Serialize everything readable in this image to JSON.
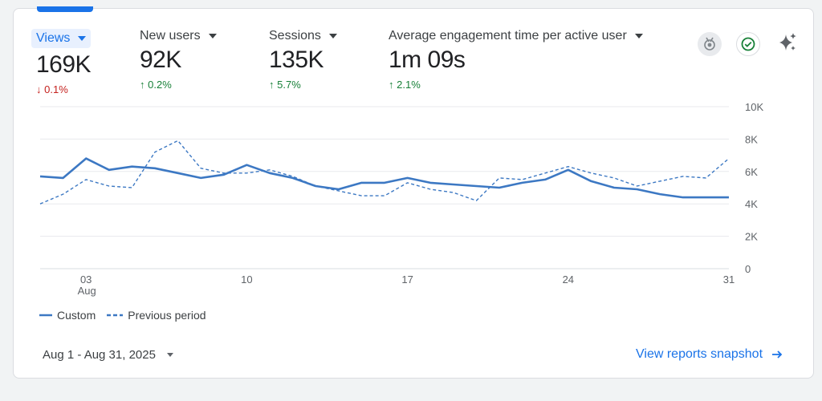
{
  "metrics": [
    {
      "label": "Views",
      "value": "169K",
      "change": "0.1%",
      "direction": "down",
      "active": true
    },
    {
      "label": "New users",
      "value": "92K",
      "change": "0.2%",
      "direction": "up",
      "active": false
    },
    {
      "label": "Sessions",
      "value": "135K",
      "change": "5.7%",
      "direction": "up",
      "active": false
    },
    {
      "label": "Average engagement time per active user",
      "value": "1m 09s",
      "change": "2.1%",
      "direction": "up",
      "active": false
    }
  ],
  "icons": [
    "insights-badge-icon",
    "check-circle-icon",
    "sparkle-icon"
  ],
  "chart_data": {
    "type": "line",
    "x": [
      1,
      2,
      3,
      4,
      5,
      6,
      7,
      8,
      9,
      10,
      11,
      12,
      13,
      14,
      15,
      16,
      17,
      18,
      19,
      20,
      21,
      22,
      23,
      24,
      25,
      26,
      27,
      28,
      29,
      30,
      31
    ],
    "x_tick_labels": [
      "03",
      "10",
      "17",
      "24",
      "31"
    ],
    "x_tick_values": [
      3,
      10,
      17,
      24,
      31
    ],
    "x_sublabel": "Aug",
    "y_tick_labels": [
      "10K",
      "8K",
      "6K",
      "4K",
      "2K",
      "0"
    ],
    "ylim": [
      0,
      10000
    ],
    "series": [
      {
        "name": "Custom",
        "style": "solid",
        "values": [
          5700,
          5600,
          6800,
          6100,
          6300,
          6200,
          5900,
          5600,
          5800,
          6400,
          5900,
          5600,
          5100,
          4900,
          5300,
          5300,
          5600,
          5300,
          5200,
          5100,
          5000,
          5300,
          5500,
          6100,
          5400,
          5000,
          4900,
          4600,
          4400,
          4400,
          4400
        ]
      },
      {
        "name": "Previous period",
        "style": "dashed",
        "values": [
          4000,
          4600,
          5500,
          5100,
          5000,
          7200,
          7900,
          6200,
          5900,
          5900,
          6100,
          5700,
          5100,
          4800,
          4500,
          4500,
          5300,
          4900,
          4700,
          4200,
          5600,
          5500,
          5900,
          6300,
          5900,
          5600,
          5100,
          5400,
          5700,
          5600,
          6800
        ]
      }
    ],
    "legend_position": "bottom-left"
  },
  "legend": {
    "custom_label": "Custom",
    "previous_label": "Previous period"
  },
  "footer": {
    "date_range": "Aug 1 - Aug 31, 2025",
    "link_label": "View reports snapshot"
  },
  "colors": {
    "accent": "#1a73e8",
    "line": "#3c78c3",
    "down": "#c5221f",
    "up": "#188038"
  }
}
